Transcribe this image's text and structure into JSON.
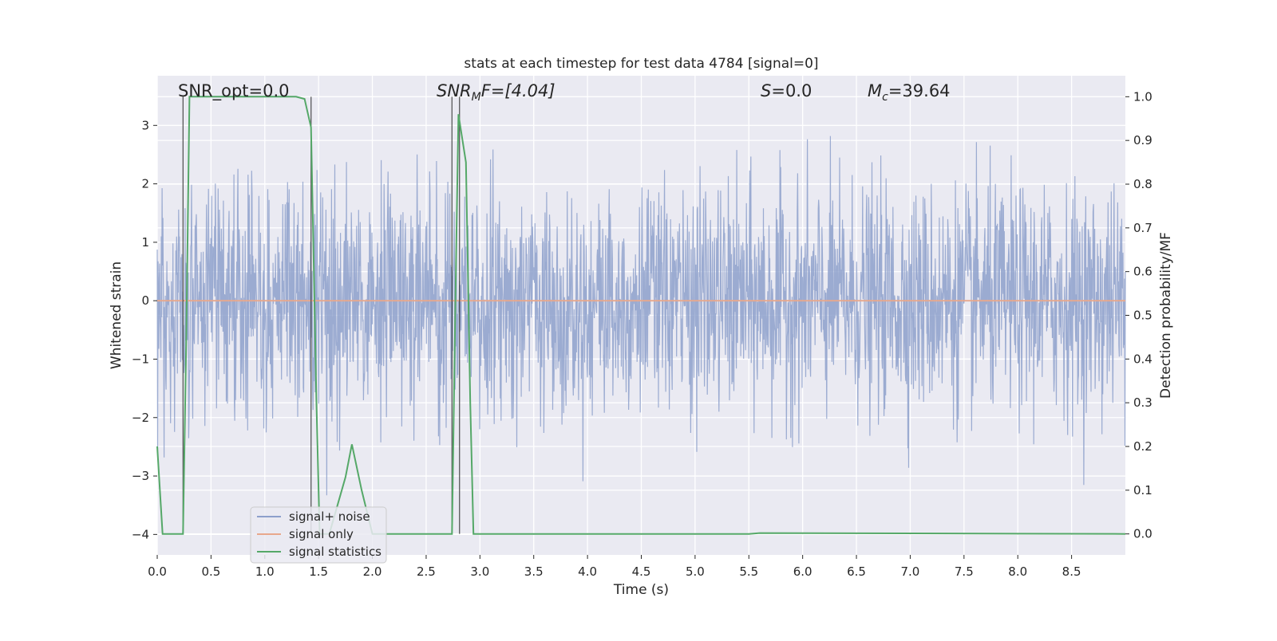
{
  "chart_data": {
    "type": "line",
    "title": "stats at each timestep for test data 4784 [signal=0]",
    "xlabel": "Time (s)",
    "ylabel": "Whitened strain",
    "y2label": "Detection probability/MF",
    "xlim": [
      0,
      9.0
    ],
    "ylim": [
      -4.35,
      3.85
    ],
    "y2lim": [
      -0.048,
      1.048
    ],
    "xticks": [
      0.0,
      0.5,
      1.0,
      1.5,
      2.0,
      2.5,
      3.0,
      3.5,
      4.0,
      4.5,
      5.0,
      5.5,
      6.0,
      6.5,
      7.0,
      7.5,
      8.0,
      8.5
    ],
    "xtick_labels": [
      "0.0",
      "0.5",
      "1.0",
      "1.5",
      "2.0",
      "2.5",
      "3.0",
      "3.5",
      "4.0",
      "4.5",
      "5.0",
      "5.5",
      "6.0",
      "6.5",
      "7.0",
      "7.5",
      "8.0",
      "8.5"
    ],
    "yticks": [
      -4,
      -3,
      -2,
      -1,
      0,
      1,
      2,
      3
    ],
    "ytick_labels": [
      "−4",
      "−3",
      "−2",
      "−1",
      "0",
      "1",
      "2",
      "3"
    ],
    "y2ticks": [
      0.0,
      0.1,
      0.2,
      0.3,
      0.4,
      0.5,
      0.6,
      0.7,
      0.8,
      0.9,
      1.0
    ],
    "y2tick_labels": [
      "0.0",
      "0.1",
      "0.2",
      "0.3",
      "0.4",
      "0.5",
      "0.6",
      "0.7",
      "0.8",
      "0.9",
      "1.0"
    ],
    "grid": true,
    "legend_placement": "lower-left",
    "annotations": {
      "snr_opt": "SNR_opt=0.0",
      "snr_mf_sym": "SNR",
      "snr_mf_sub": "M",
      "snr_mf_rest": "F=[4.04]",
      "s_sym": "S",
      "s_rest": "=0.0",
      "mc_sym": "M",
      "mc_sub": "c",
      "mc_rest": "=39.64"
    },
    "vertical_lines_x": [
      0.24,
      1.43,
      2.74,
      2.81
    ],
    "series": [
      {
        "name": "signal+ noise",
        "color": "#8da0cb",
        "axis": "left",
        "description_values": "whitened noise fluctuating between about -4 and +3.4 around 0"
      },
      {
        "name": "signal only",
        "color": "#e8a88c",
        "axis": "left",
        "y_constant": 0
      },
      {
        "name": "signal statistics",
        "color": "#55a868",
        "axis": "right",
        "x": [
          0.0,
          0.05,
          0.24,
          0.27,
          0.3,
          0.5,
          1.0,
          1.29,
          1.37,
          1.43,
          1.48,
          1.51,
          1.6,
          1.75,
          1.81,
          1.9,
          2.0,
          2.5,
          2.74,
          2.77,
          2.8,
          2.87,
          2.91,
          2.94,
          3.0,
          5.5,
          5.6,
          9.0
        ],
        "values": [
          0.2,
          0.0,
          0.0,
          0.45,
          1.0,
          1.0,
          1.0,
          1.0,
          0.995,
          0.93,
          0.3,
          0.0,
          0.0,
          0.13,
          0.205,
          0.1,
          0.0,
          0.0,
          0.0,
          0.5,
          0.96,
          0.85,
          0.3,
          0.0,
          0.0,
          0.0,
          0.002,
          0.0
        ]
      }
    ]
  }
}
